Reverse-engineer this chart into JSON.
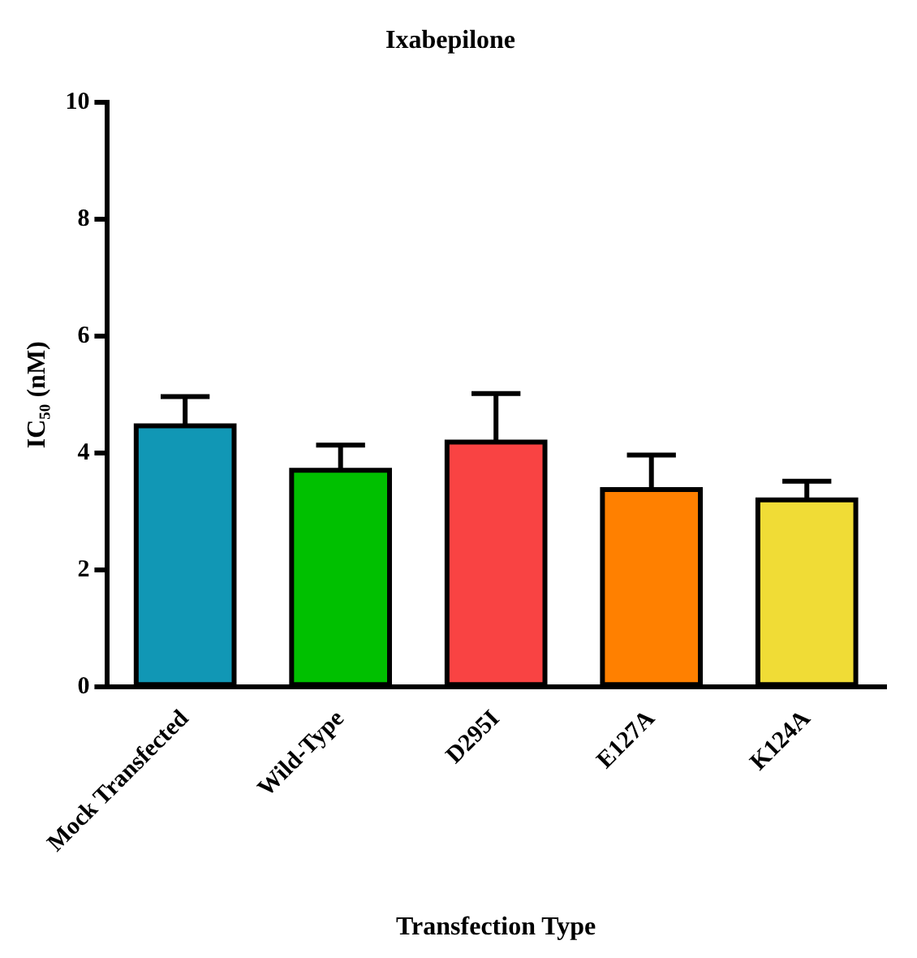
{
  "chart_data": {
    "type": "bar",
    "title": "Ixabepilone",
    "xlabel": "Transfection Type",
    "ylabel": "IC₅₀ (nM)",
    "categories": [
      "Mock Transfected",
      "Wild-Type",
      "D295I",
      "E127A",
      "K124A"
    ],
    "values": [
      4.47,
      3.71,
      4.19,
      3.38,
      3.2
    ],
    "colors": [
      "#1197b5",
      "#00c000",
      "#f94343",
      "#ff8000",
      "#f0dc36"
    ],
    "errors": [
      [
        4.47,
        4.97
      ],
      [
        3.71,
        4.14
      ],
      [
        4.19,
        5.02
      ],
      [
        3.38,
        3.97
      ],
      [
        3.2,
        3.52
      ]
    ],
    "ylim": [
      0,
      10
    ],
    "yticks": [
      0,
      2,
      4,
      6,
      8,
      10
    ],
    "grid": false,
    "legend": false
  }
}
